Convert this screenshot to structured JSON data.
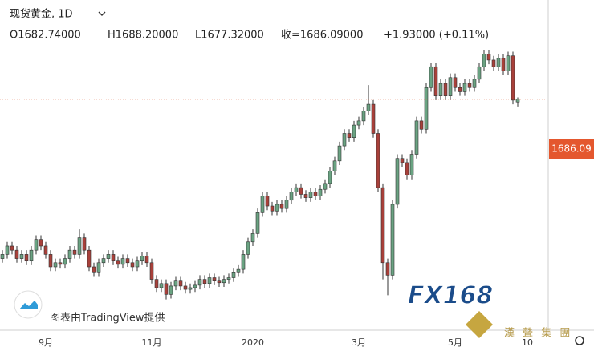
{
  "chart_data": {
    "type": "candlestick",
    "title": "现货黄金, 1D",
    "ohlc_header": {
      "open": "O1682.74000",
      "high": "H1688.20000",
      "low": "L1677.32000",
      "close": "收=1686.09000",
      "change": "+1.93000 (+0.11%)"
    },
    "last_price_label": "1686.09",
    "attribution": "图表由TradingView提供",
    "logo": "FX168",
    "watermark": "漢 聲 集 團",
    "up_color": "#6aa382",
    "down_color": "#a8403a",
    "last_line_color": "#e0704f",
    "ylim": [
      1411,
      1805
    ],
    "categories": [
      null,
      null,
      null,
      null,
      null,
      null,
      null,
      null,
      null,
      "9月",
      null,
      null,
      null,
      null,
      null,
      null,
      null,
      null,
      null,
      null,
      null,
      null,
      null,
      null,
      null,
      null,
      null,
      null,
      null,
      null,
      null,
      "11月",
      null,
      null,
      null,
      null,
      null,
      null,
      null,
      null,
      null,
      null,
      null,
      null,
      null,
      null,
      null,
      null,
      null,
      null,
      null,
      null,
      "2020",
      null,
      null,
      null,
      null,
      null,
      null,
      null,
      null,
      null,
      null,
      null,
      null,
      null,
      null,
      null,
      null,
      null,
      null,
      null,
      null,
      null,
      "3月",
      null,
      null,
      null,
      null,
      null,
      null,
      null,
      null,
      null,
      null,
      null,
      null,
      null,
      null,
      null,
      null,
      null,
      null,
      null,
      "5月",
      null,
      null,
      null,
      null,
      null,
      null,
      null,
      null,
      null,
      null,
      null,
      null,
      null,
      null,
      "10"
    ],
    "open": [
      1495,
      1500,
      1510,
      1505,
      1495,
      1500,
      1492,
      1505,
      1518,
      1510,
      1500,
      1485,
      1490,
      1488,
      1495,
      1505,
      1500,
      1520,
      1505,
      1485,
      1478,
      1490,
      1495,
      1500,
      1492,
      1488,
      1495,
      1490,
      1485,
      1492,
      1498,
      1490,
      1470,
      1460,
      1465,
      1452,
      1462,
      1468,
      1462,
      1458,
      1460,
      1463,
      1470,
      1465,
      1472,
      1468,
      1466,
      1470,
      1472,
      1478,
      1482,
      1500,
      1515,
      1525,
      1550,
      1570,
      1558,
      1552,
      1560,
      1555,
      1565,
      1575,
      1580,
      1572,
      1568,
      1575,
      1570,
      1578,
      1585,
      1600,
      1612,
      1630,
      1645,
      1640,
      1655,
      1660,
      1672,
      1680,
      1645,
      1580,
      1490,
      1475,
      1560,
      1615,
      1610,
      1595,
      1620,
      1660,
      1650,
      1700,
      1725,
      1690,
      1705,
      1690,
      1712,
      1700,
      1695,
      1705,
      1700,
      1710,
      1725,
      1740,
      1733,
      1725,
      1735,
      1720,
      1738,
      1682.74,
      null,
      null
    ],
    "high": [
      1505,
      1515,
      1515,
      1510,
      1505,
      1505,
      1510,
      1523,
      1523,
      1515,
      1505,
      1495,
      1495,
      1500,
      1510,
      1510,
      1530,
      1525,
      1510,
      1490,
      1495,
      1500,
      1505,
      1505,
      1497,
      1500,
      1500,
      1495,
      1497,
      1503,
      1503,
      1495,
      1475,
      1470,
      1470,
      1467,
      1473,
      1473,
      1467,
      1465,
      1468,
      1475,
      1475,
      1477,
      1477,
      1473,
      1475,
      1477,
      1483,
      1487,
      1505,
      1520,
      1530,
      1555,
      1575,
      1575,
      1563,
      1565,
      1565,
      1570,
      1580,
      1585,
      1585,
      1577,
      1580,
      1580,
      1583,
      1590,
      1605,
      1617,
      1635,
      1650,
      1650,
      1660,
      1665,
      1677,
      1703,
      1685,
      1650,
      1585,
      1495,
      1565,
      1620,
      1620,
      1615,
      1625,
      1665,
      1665,
      1705,
      1730,
      1730,
      1710,
      1710,
      1717,
      1717,
      1705,
      1710,
      1710,
      1715,
      1730,
      1745,
      1745,
      1738,
      1740,
      1740,
      1743,
      1743,
      1688.2,
      null,
      null
    ],
    "low": [
      1490,
      1495,
      1500,
      1490,
      1490,
      1487,
      1487,
      1500,
      1505,
      1495,
      1480,
      1480,
      1483,
      1483,
      1490,
      1495,
      1495,
      1500,
      1480,
      1473,
      1473,
      1485,
      1490,
      1487,
      1483,
      1483,
      1485,
      1480,
      1480,
      1487,
      1485,
      1465,
      1455,
      1455,
      1446,
      1447,
      1457,
      1457,
      1453,
      1453,
      1455,
      1458,
      1460,
      1460,
      1463,
      1461,
      1461,
      1465,
      1467,
      1473,
      1477,
      1495,
      1510,
      1520,
      1545,
      1553,
      1547,
      1547,
      1550,
      1550,
      1560,
      1570,
      1567,
      1563,
      1563,
      1565,
      1565,
      1573,
      1580,
      1595,
      1607,
      1625,
      1635,
      1635,
      1650,
      1655,
      1667,
      1640,
      1575,
      1470,
      1451,
      1470,
      1555,
      1605,
      1590,
      1590,
      1615,
      1645,
      1645,
      1695,
      1685,
      1685,
      1685,
      1685,
      1695,
      1690,
      1690,
      1695,
      1695,
      1705,
      1720,
      1728,
      1720,
      1720,
      1715,
      1715,
      1680,
      1677.32,
      null,
      null
    ],
    "close": [
      1500,
      1510,
      1505,
      1495,
      1500,
      1492,
      1505,
      1518,
      1510,
      1500,
      1485,
      1490,
      1488,
      1495,
      1505,
      1500,
      1520,
      1505,
      1485,
      1478,
      1490,
      1495,
      1500,
      1492,
      1488,
      1495,
      1490,
      1485,
      1492,
      1498,
      1490,
      1470,
      1460,
      1465,
      1452,
      1462,
      1468,
      1462,
      1458,
      1460,
      1463,
      1470,
      1465,
      1472,
      1468,
      1466,
      1470,
      1472,
      1478,
      1482,
      1500,
      1515,
      1525,
      1550,
      1570,
      1558,
      1552,
      1560,
      1555,
      1565,
      1575,
      1580,
      1572,
      1568,
      1575,
      1570,
      1578,
      1585,
      1600,
      1612,
      1630,
      1645,
      1640,
      1655,
      1660,
      1672,
      1680,
      1645,
      1580,
      1490,
      1475,
      1560,
      1615,
      1610,
      1595,
      1620,
      1660,
      1650,
      1700,
      1725,
      1690,
      1705,
      1690,
      1712,
      1700,
      1695,
      1705,
      1700,
      1710,
      1725,
      1740,
      1733,
      1725,
      1735,
      1720,
      1738,
      1685,
      1686.09,
      null,
      null
    ]
  }
}
